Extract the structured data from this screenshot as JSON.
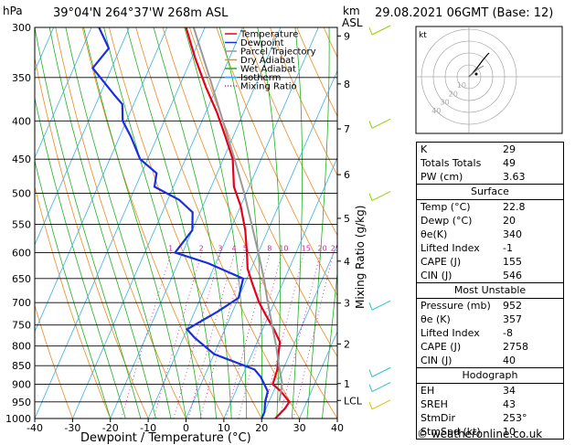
{
  "header": {
    "pressure_unit": "hPa",
    "location": "39°04'N  264°37'W  268m  ASL",
    "height_unit_top": "km",
    "height_unit_bottom": "ASL",
    "datetime": "29.08.2021  06GMT  (Base: 12)"
  },
  "chart_data": {
    "type": "line",
    "xlabel": "Dewpoint / Temperature (°C)",
    "ylabel": "hPa",
    "right_label": "Mixing Ratio (g/kg)",
    "xlim": [
      -40,
      40
    ],
    "ylim": [
      1000,
      300
    ],
    "x_ticks": [
      -40,
      -30,
      -20,
      -10,
      0,
      10,
      20,
      30,
      40
    ],
    "pressure_ticks": [
      300,
      350,
      400,
      450,
      500,
      550,
      600,
      650,
      700,
      750,
      800,
      850,
      900,
      950,
      1000
    ],
    "km_ticks": [
      {
        "label": "9",
        "p": 308
      },
      {
        "label": "8",
        "p": 357
      },
      {
        "label": "7",
        "p": 410
      },
      {
        "label": "6",
        "p": 472
      },
      {
        "label": "5",
        "p": 540
      },
      {
        "label": "4",
        "p": 616
      },
      {
        "label": "3",
        "p": 701
      },
      {
        "label": "2",
        "p": 795
      },
      {
        "label": "1",
        "p": 898
      },
      {
        "label": "LCL",
        "p": 946
      }
    ],
    "mixing_ratio_labels": [
      "1",
      "2",
      "3",
      "4",
      "5",
      "8",
      "10",
      "15",
      "20",
      "25"
    ],
    "mixing_ratio_values": [
      1,
      2,
      3,
      4,
      5,
      8,
      10,
      15,
      20,
      25
    ],
    "legend": [
      "Temperature",
      "Dewpoint",
      "Parcel Trajectory",
      "Dry Adiabat",
      "Wet Adiabat",
      "Isotherm",
      "Mixing Ratio"
    ],
    "legend_position": "top-left",
    "series": [
      {
        "name": "Temperature",
        "color": "#e8001a",
        "points": [
          [
            23.6,
            1000
          ],
          [
            25,
            970
          ],
          [
            25.4,
            950
          ],
          [
            22,
            920
          ],
          [
            19,
            900
          ],
          [
            18.5,
            860
          ],
          [
            17,
            820
          ],
          [
            16,
            790
          ],
          [
            13,
            760
          ],
          [
            9.5,
            730
          ],
          [
            6,
            700
          ],
          [
            2,
            660
          ],
          [
            -1,
            630
          ],
          [
            -3,
            600
          ],
          [
            -6,
            560
          ],
          [
            -10,
            520
          ],
          [
            -14,
            490
          ],
          [
            -17.5,
            450
          ],
          [
            -22,
            420
          ],
          [
            -27,
            390
          ],
          [
            -33,
            360
          ],
          [
            -39,
            330
          ],
          [
            -45,
            300
          ]
        ]
      },
      {
        "name": "Dewpoint",
        "color": "#1a2ee0",
        "points": [
          [
            20,
            1000
          ],
          [
            20,
            980
          ],
          [
            19,
            950
          ],
          [
            18.5,
            920
          ],
          [
            15,
            880
          ],
          [
            12.5,
            860
          ],
          [
            0,
            820
          ],
          [
            -7,
            780
          ],
          [
            -10,
            760
          ],
          [
            -4,
            720
          ],
          [
            0,
            690
          ],
          [
            -1,
            650
          ],
          [
            -12,
            620
          ],
          [
            -22,
            600
          ],
          [
            -20,
            560
          ],
          [
            -22,
            530
          ],
          [
            -27,
            510
          ],
          [
            -35,
            490
          ],
          [
            -36,
            470
          ],
          [
            -42,
            450
          ],
          [
            -47,
            420
          ],
          [
            -51,
            400
          ],
          [
            -53,
            380
          ],
          [
            -56,
            370
          ],
          [
            -65,
            340
          ],
          [
            -63,
            320
          ],
          [
            -68,
            300
          ]
        ]
      },
      {
        "name": "Parcel Trajectory",
        "color": "#999999",
        "points": [
          [
            22.8,
            952
          ],
          [
            21.5,
            900
          ],
          [
            18.5,
            850
          ],
          [
            15.5,
            800
          ],
          [
            12,
            750
          ],
          [
            8.3,
            700
          ],
          [
            4.5,
            650
          ],
          [
            0,
            600
          ],
          [
            -5,
            550
          ],
          [
            -10.5,
            500
          ],
          [
            -17,
            450
          ],
          [
            -24.5,
            400
          ],
          [
            -33,
            350
          ],
          [
            -43,
            300
          ]
        ]
      }
    ]
  },
  "stats": {
    "rows": [
      {
        "label": "K",
        "value": "29"
      },
      {
        "label": "Totals Totals",
        "value": "49"
      },
      {
        "label": "PW (cm)",
        "value": "3.63"
      }
    ],
    "surface_title": "Surface",
    "surface": [
      {
        "label": "Temp (°C)",
        "value": "22.8"
      },
      {
        "label": "Dewp (°C)",
        "value": "20"
      },
      {
        "label": "θe(K)",
        "value": "340"
      },
      {
        "label": "Lifted Index",
        "value": "-1"
      },
      {
        "label": "CAPE (J)",
        "value": "155"
      },
      {
        "label": "CIN (J)",
        "value": "546"
      }
    ],
    "unstable_title": "Most Unstable",
    "unstable": [
      {
        "label": "Pressure (mb)",
        "value": "952"
      },
      {
        "label": "θe (K)",
        "value": "357"
      },
      {
        "label": "Lifted Index",
        "value": "-8"
      },
      {
        "label": "CAPE (J)",
        "value": "2758"
      },
      {
        "label": "CIN (J)",
        "value": "40"
      }
    ],
    "hodo_title": "Hodograph",
    "hodo": [
      {
        "label": "EH",
        "value": "34"
      },
      {
        "label": "SREH",
        "value": "43"
      },
      {
        "label": "StmDir",
        "value": "253°"
      },
      {
        "label": "StmSpd (kt)",
        "value": "10"
      }
    ]
  },
  "hodograph": {
    "unit": "kt",
    "ring_labels": [
      "10",
      "20",
      "30",
      "40"
    ]
  },
  "copyright": "© weatheronline.co.uk"
}
